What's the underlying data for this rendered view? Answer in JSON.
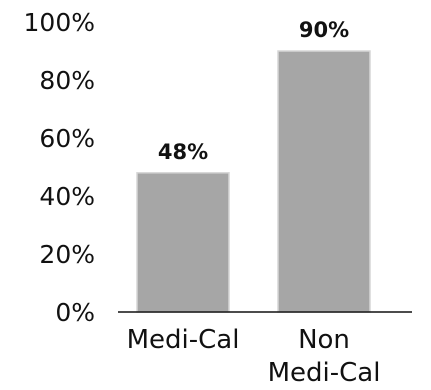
{
  "chart_data": {
    "type": "bar",
    "categories": [
      "Medi-Cal",
      "Non\nMedi-Cal"
    ],
    "values": [
      48,
      90
    ],
    "data_labels": [
      "48%",
      "90%"
    ],
    "y_ticks": [
      "0%",
      "20%",
      "40%",
      "60%",
      "80%",
      "100%"
    ],
    "ylim": [
      0,
      100
    ],
    "title": "",
    "xlabel": "",
    "ylabel": "",
    "grid": false,
    "legend": "none",
    "bar_color": "#a6a6a6"
  }
}
